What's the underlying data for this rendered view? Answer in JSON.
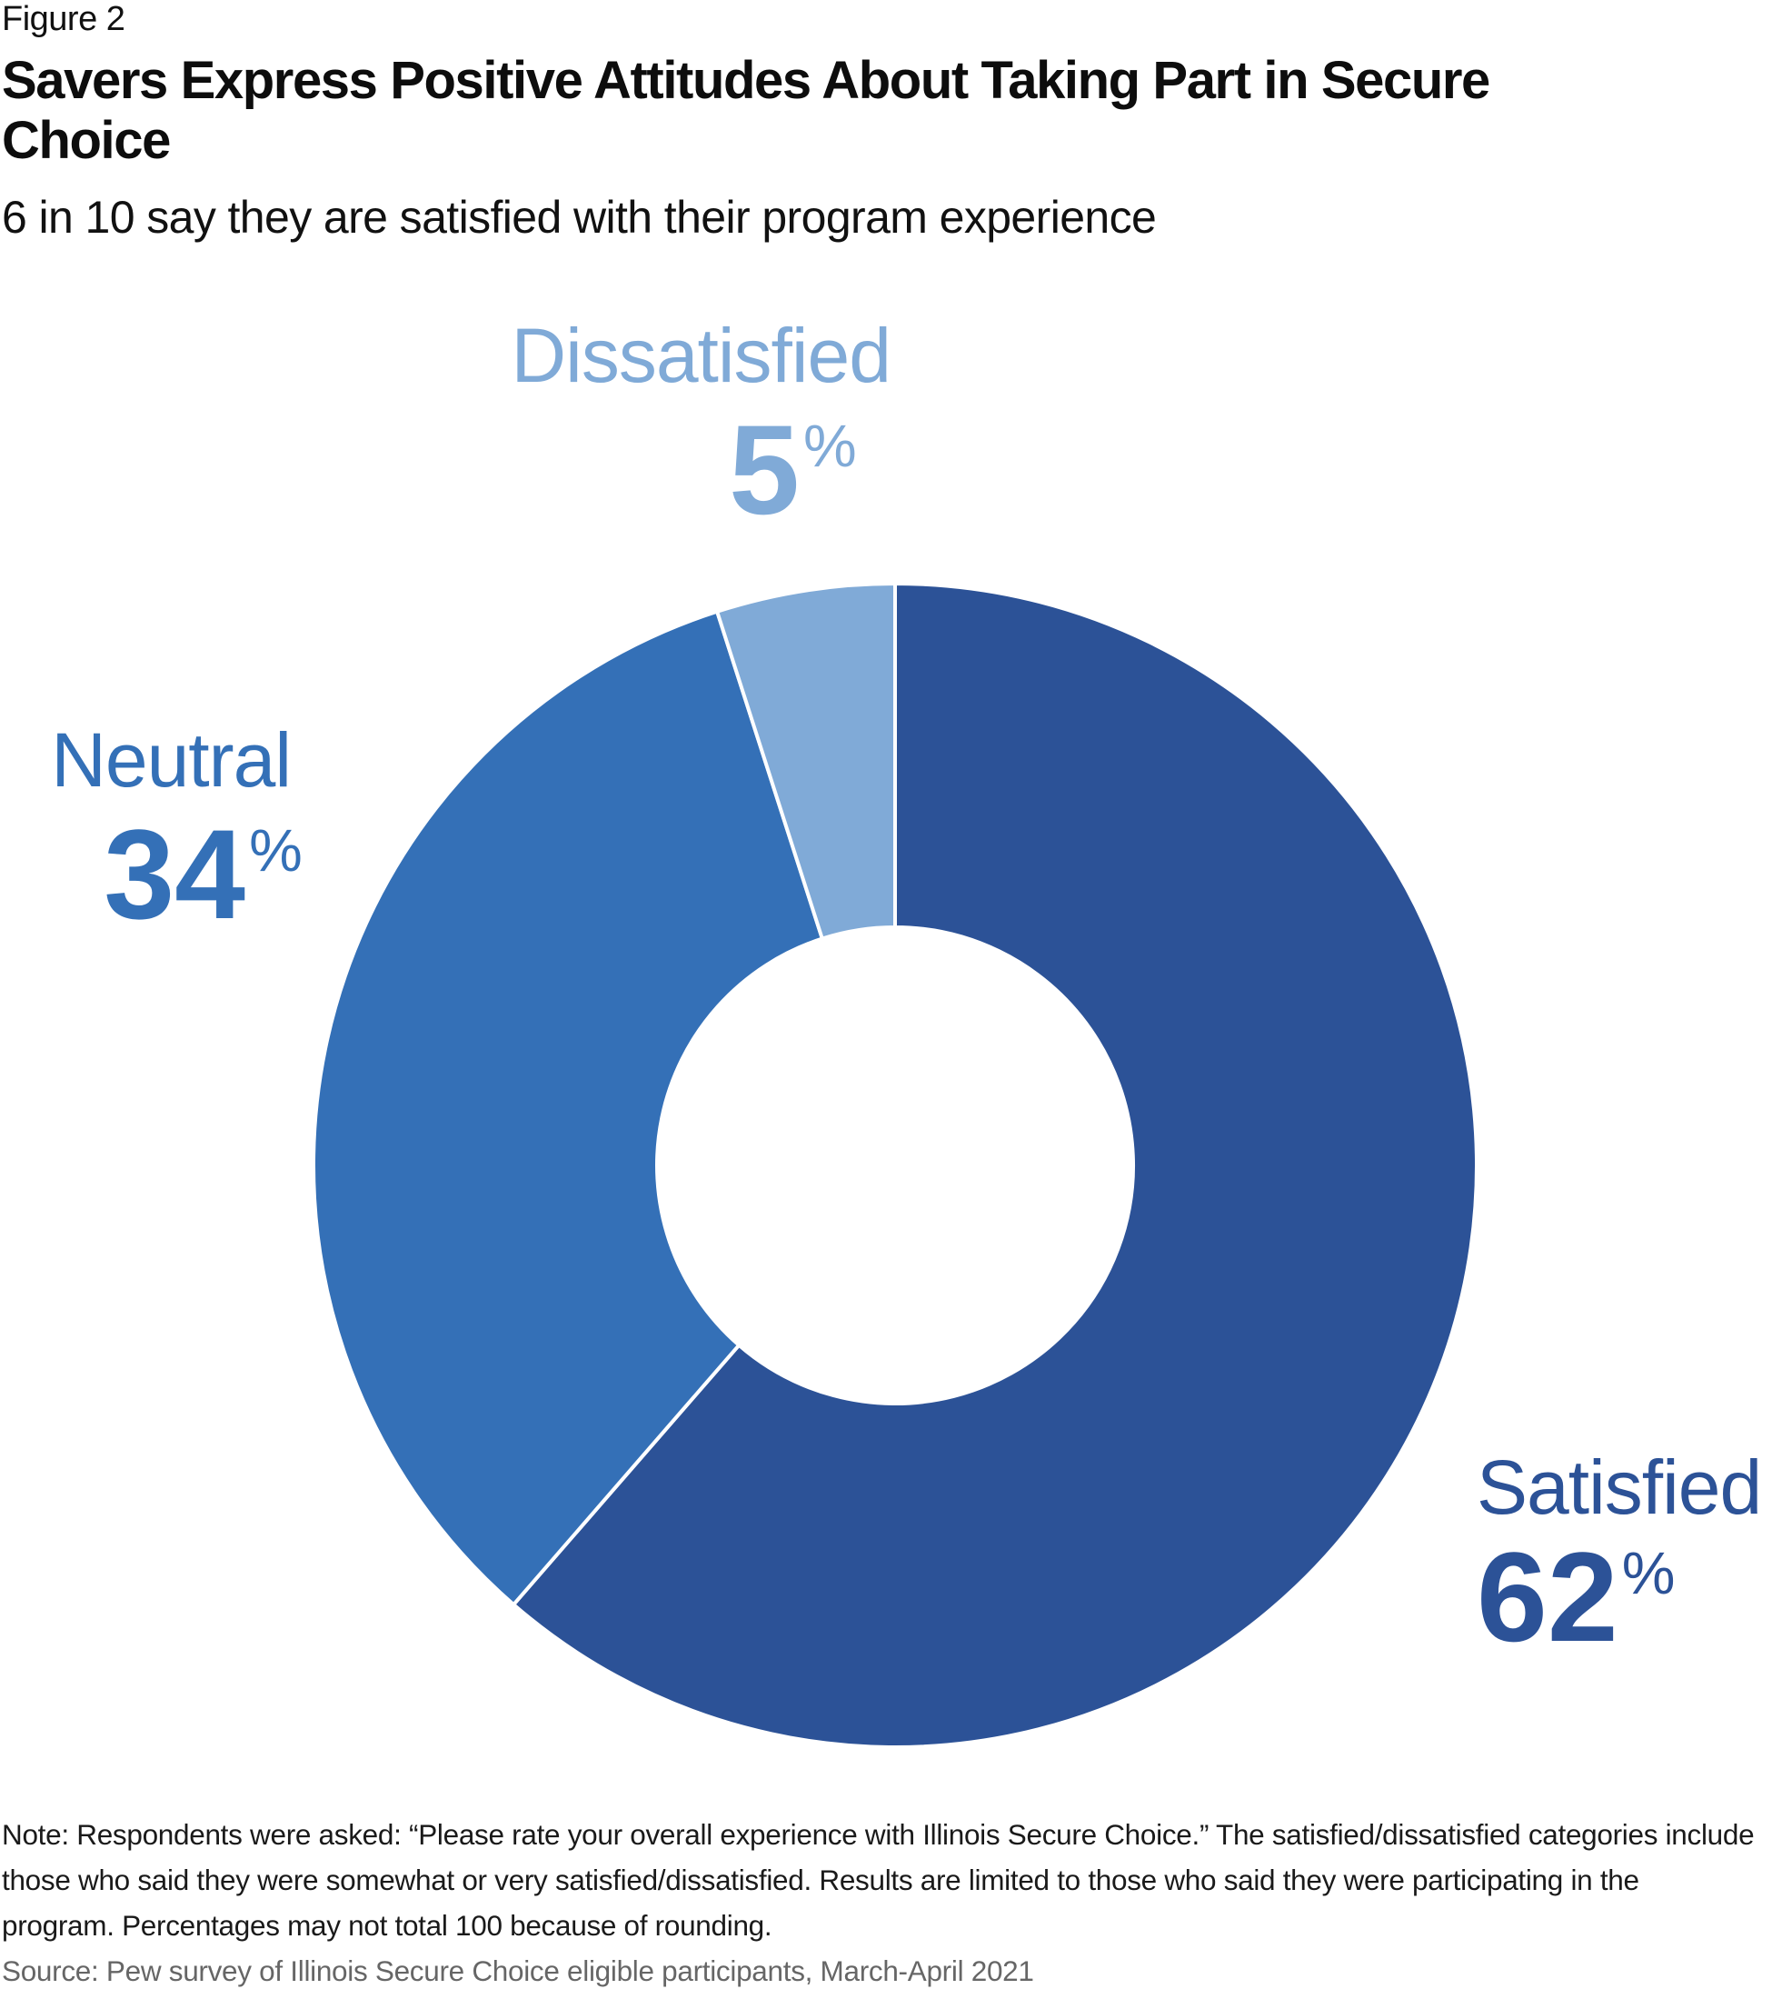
{
  "figure_label": "Figure 2",
  "title": "Savers Express Positive Attitudes About Taking Part in Secure Choice",
  "subtitle": "6 in 10 say they are satisfied with their program experience",
  "note": "Note: Respondents were asked: “Please rate your overall experience with Illinois Secure Choice.” The satisfied/dissatisfied categories include those who said they were somewhat or very satisfied/dissatisfied. Results are limited to those who said they were participating in the program. Percentages may not total 100 because of rounding.",
  "source": "Source: Pew survey of Illinois Secure Choice eligible participants, March-April 2021",
  "chart_data": {
    "type": "pie",
    "variant": "donut",
    "title": "Savers Express Positive Attitudes About Taking Part in Secure Choice",
    "subtitle": "6 in 10 say they are satisfied with their program experience",
    "start": "12 o'clock, clockwise",
    "slices": [
      {
        "name": "Satisfied",
        "value": 62,
        "label": "62",
        "unit": "%",
        "color": "#2c5297"
      },
      {
        "name": "Neutral",
        "value": 34,
        "label": "34",
        "unit": "%",
        "color": "#3470b7"
      },
      {
        "name": "Dissatisfied",
        "value": 5,
        "label": "5",
        "unit": "%",
        "color": "#80aad7"
      }
    ],
    "legend": "none (direct labels)"
  }
}
